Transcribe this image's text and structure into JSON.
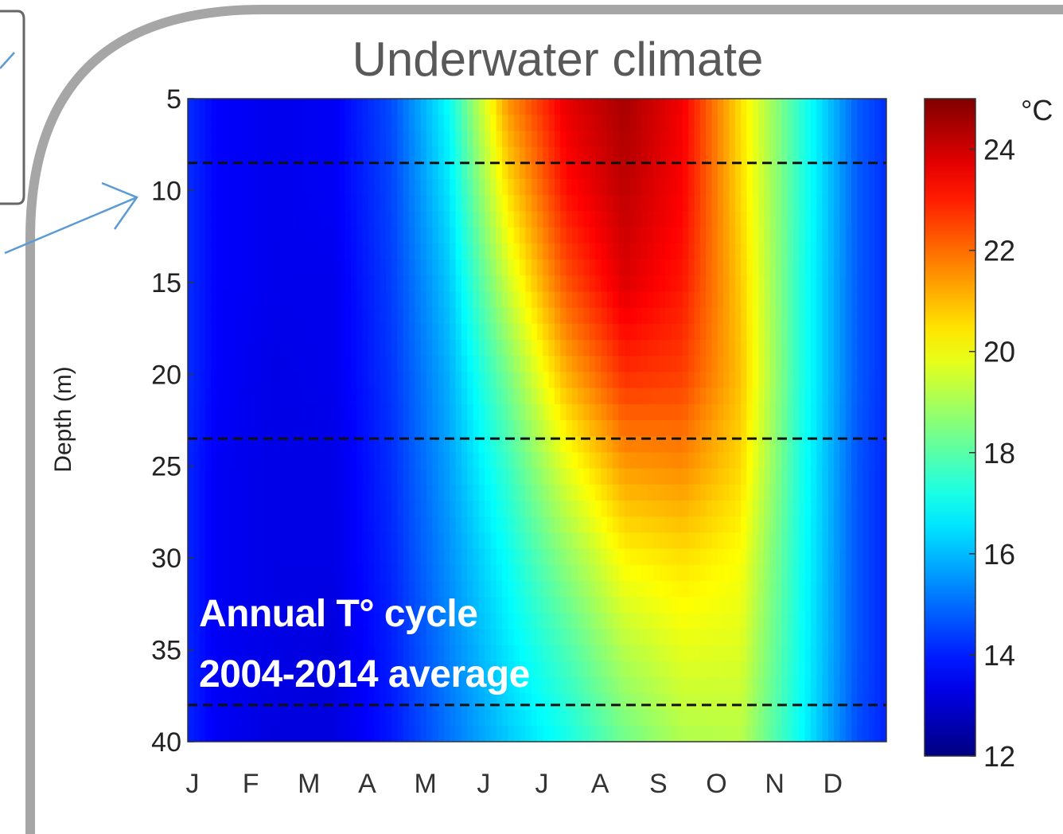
{
  "chart_data": {
    "type": "heatmap",
    "title": "Underwater climate",
    "xlabel": "",
    "ylabel": "Depth (m)",
    "x_tick_labels": [
      "J",
      "F",
      "M",
      "A",
      "M",
      "J",
      "J",
      "A",
      "S",
      "O",
      "N",
      "D"
    ],
    "y_ticks": [
      5,
      10,
      15,
      20,
      25,
      30,
      35,
      40
    ],
    "y_tick_labels": [
      "5",
      "10",
      "15",
      "20",
      "25",
      "30",
      "35",
      "40"
    ],
    "ylim": [
      5,
      40
    ],
    "y_reversed": true,
    "colorbar": {
      "unit": "°C",
      "ticks": [
        12,
        14,
        16,
        18,
        20,
        22,
        24
      ],
      "range": [
        12,
        25
      ],
      "colormap": "jet"
    },
    "reference_depths": [
      8.5,
      23.5,
      38
    ],
    "depths": [
      5,
      10,
      15,
      20,
      25,
      30,
      35,
      40
    ],
    "months": [
      "J",
      "F",
      "M",
      "A",
      "M",
      "J",
      "J",
      "A",
      "S",
      "O",
      "N",
      "D"
    ],
    "temperature": [
      [
        13.6,
        13.4,
        13.5,
        14.6,
        17.0,
        21.5,
        23.7,
        24.5,
        23.5,
        20.5,
        17.5,
        14.8
      ],
      [
        13.6,
        13.4,
        13.5,
        14.5,
        16.6,
        20.5,
        23.2,
        24.2,
        23.4,
        20.6,
        17.5,
        14.8
      ],
      [
        13.6,
        13.4,
        13.4,
        14.4,
        16.2,
        19.5,
        22.3,
        23.8,
        23.1,
        20.8,
        17.4,
        14.8
      ],
      [
        13.6,
        13.3,
        13.4,
        14.3,
        15.9,
        18.4,
        21.1,
        22.8,
        22.6,
        20.9,
        17.4,
        14.8
      ],
      [
        13.5,
        13.3,
        13.3,
        14.2,
        15.7,
        17.6,
        19.8,
        21.4,
        21.6,
        20.6,
        17.3,
        14.7
      ],
      [
        13.5,
        13.3,
        13.3,
        14.1,
        15.5,
        17.0,
        18.7,
        20.2,
        20.5,
        20.1,
        17.2,
        14.7
      ],
      [
        13.5,
        13.3,
        13.2,
        14.0,
        15.3,
        16.6,
        17.8,
        19.2,
        19.8,
        19.7,
        17.1,
        14.7
      ],
      [
        13.5,
        13.2,
        13.2,
        13.9,
        15.1,
        16.2,
        17.1,
        18.3,
        19.1,
        19.2,
        17.0,
        14.6
      ]
    ]
  },
  "annotation": {
    "line1": "Annual T° cycle",
    "line2": "2004-2014 average"
  },
  "colors": {
    "frame": "#a6a6a6",
    "arrow": "#5b9bd5",
    "dashed_line": "#111111",
    "title_text": "#595959"
  }
}
